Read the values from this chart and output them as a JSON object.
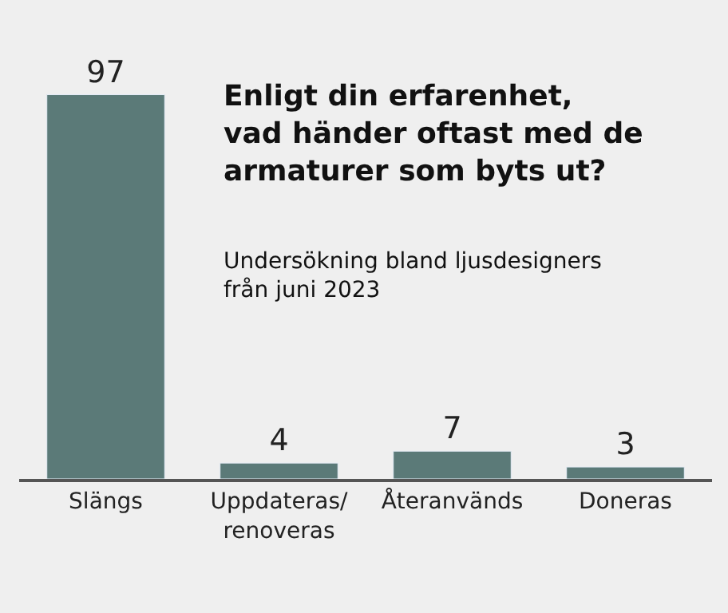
{
  "chart_data": {
    "type": "bar",
    "title": "Enligt din erfarenhet,\nvad händer oftast med de\narmaturer som byts ut?",
    "subtitle": "Undersökning bland ljusdesigners\nfrån juni 2023",
    "categories": [
      "Slängs",
      "Uppdateras/\nrenoveras",
      "Återanvänds",
      "Doneras"
    ],
    "values": [
      97,
      4,
      7,
      3
    ],
    "color": "#5b7a78",
    "data_labels": true,
    "grid": false,
    "legend": false
  }
}
